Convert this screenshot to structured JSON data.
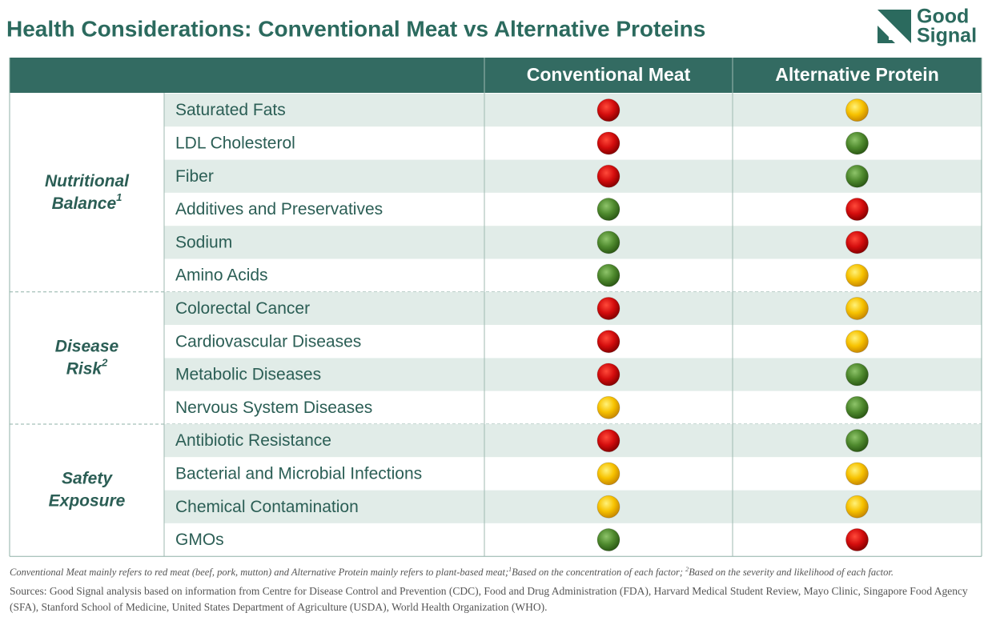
{
  "header": {
    "title": "Health Considerations: Conventional Meat vs Alternative Proteins",
    "logo": [
      "Good",
      "Signal"
    ]
  },
  "table": {
    "columns": [
      "Conventional Meat",
      "Alternative Protein"
    ],
    "rating_colors": {
      "red": [
        "#ff4a3a",
        "#d40d0d",
        "#8a0000"
      ],
      "yellow": [
        "#fff27a",
        "#f7c200",
        "#c98a00"
      ],
      "green": [
        "#8ec46a",
        "#4f8a2e",
        "#2c5a15"
      ]
    },
    "groups": [
      {
        "label": [
          "Nutritional",
          "Balance"
        ],
        "sup": "1",
        "rows": [
          {
            "factor": "Saturated Fats",
            "ratings": [
              "red",
              "yellow"
            ]
          },
          {
            "factor": "LDL Cholesterol",
            "ratings": [
              "red",
              "green"
            ]
          },
          {
            "factor": "Fiber",
            "ratings": [
              "red",
              "green"
            ]
          },
          {
            "factor": "Additives and Preservatives",
            "ratings": [
              "green",
              "red"
            ]
          },
          {
            "factor": "Sodium",
            "ratings": [
              "green",
              "red"
            ]
          },
          {
            "factor": "Amino Acids",
            "ratings": [
              "green",
              "yellow"
            ]
          }
        ]
      },
      {
        "label": [
          "Disease",
          "Risk"
        ],
        "sup": "2",
        "rows": [
          {
            "factor": "Colorectal Cancer",
            "ratings": [
              "red",
              "yellow"
            ]
          },
          {
            "factor": "Cardiovascular Diseases",
            "ratings": [
              "red",
              "yellow"
            ]
          },
          {
            "factor": "Metabolic Diseases",
            "ratings": [
              "red",
              "green"
            ]
          },
          {
            "factor": "Nervous System Diseases",
            "ratings": [
              "yellow",
              "green"
            ]
          }
        ]
      },
      {
        "label": [
          "Safety",
          "Exposure"
        ],
        "sup": null,
        "rows": [
          {
            "factor": "Antibiotic Resistance",
            "ratings": [
              "red",
              "green"
            ]
          },
          {
            "factor": "Bacterial and Microbial Infections",
            "ratings": [
              "yellow",
              "yellow"
            ]
          },
          {
            "factor": "Chemical Contamination",
            "ratings": [
              "yellow",
              "yellow"
            ]
          },
          {
            "factor": "GMOs",
            "ratings": [
              "green",
              "red"
            ]
          }
        ]
      }
    ]
  },
  "footer": {
    "note": [
      "Conventional Meat mainly refers to red meat (beef, pork, mutton) and Alternative Protein mainly refers to plant-based meat;",
      "1",
      "Based on the concentration of each factor; ",
      "2",
      "Based on the severity and likelihood of each factor."
    ],
    "sources": "Sources: Good Signal analysis based on information from Centre for Disease Control and Prevention (CDC), Food and Drug Administration (FDA), Harvard Medical Student Review, Mayo Clinic, Singapore Food Agency (SFA), Stanford School of Medicine, United States Department of Agriculture (USDA), World Health Organization (WHO)."
  }
}
